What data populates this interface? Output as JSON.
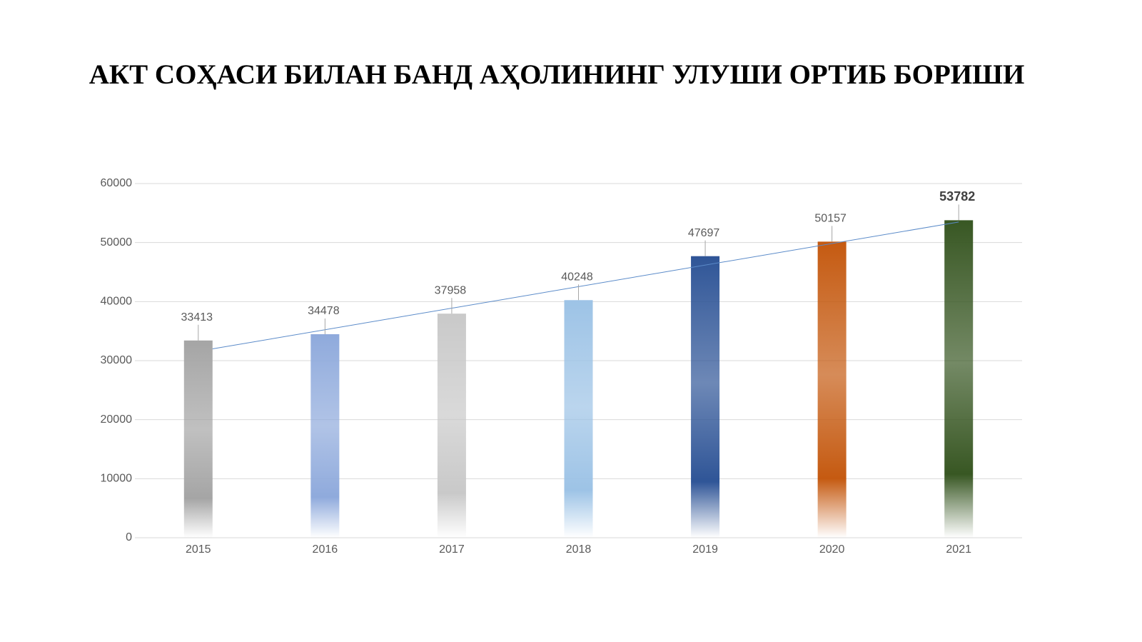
{
  "chart_data": {
    "type": "bar",
    "title": "АКТ СОҲАСИ БИЛАН БАНД АҲОЛИНИНГ УЛУШИ ОРТИБ БОРИШИ",
    "categories": [
      "2015",
      "2016",
      "2017",
      "2018",
      "2019",
      "2020",
      "2021"
    ],
    "values": [
      33413,
      34478,
      37958,
      40248,
      47697,
      50157,
      53782
    ],
    "colors": [
      "#a5a5a5",
      "#8faadc",
      "#c9c9c9",
      "#9dc3e6",
      "#2f5597",
      "#c55a11",
      "#385723"
    ],
    "ylim": [
      0,
      60000
    ],
    "yticks": [
      0,
      10000,
      20000,
      30000,
      40000,
      50000,
      60000
    ],
    "grid": true,
    "data_labels": true,
    "bold_label_index": 6,
    "trendline": "linear",
    "trendline_color": "#5b8bc9"
  }
}
